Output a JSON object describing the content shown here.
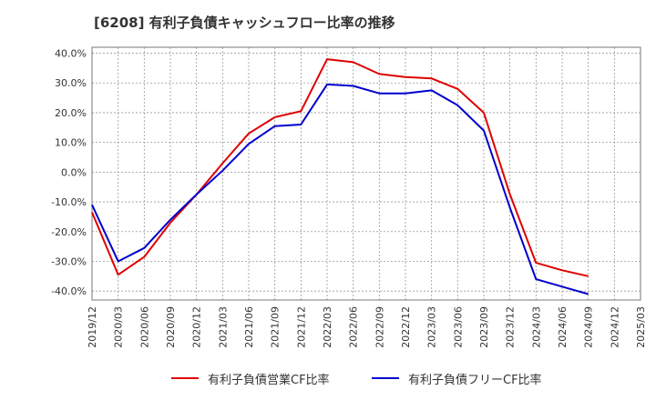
{
  "title": "[6208]  有利子負債キャッシュフロー比率の推移",
  "colors": {
    "series1": "#e00000",
    "series2": "#0000cc",
    "grid": "#999999",
    "axis": "#666666",
    "text": "#333333"
  },
  "chart_data": {
    "type": "line",
    "title": "[6208]  有利子負債キャッシュフロー比率の推移",
    "xlabel": "",
    "ylabel": "",
    "ylim": [
      -43,
      42
    ],
    "yticks": [
      40,
      30,
      20,
      10,
      0,
      -10,
      -20,
      -30,
      -40
    ],
    "ytick_labels": [
      "40.0%",
      "30.0%",
      "20.0%",
      "10.0%",
      "0.0%",
      "-10.0%",
      "-20.0%",
      "-30.0%",
      "-40.0%"
    ],
    "xticks": [
      "2019/12",
      "2020/03",
      "2020/06",
      "2020/09",
      "2020/12",
      "2021/03",
      "2021/06",
      "2021/09",
      "2021/12",
      "2022/03",
      "2022/06",
      "2022/09",
      "2022/12",
      "2023/03",
      "2023/06",
      "2023/09",
      "2023/12",
      "2024/03",
      "2024/06",
      "2024/09",
      "2024/12",
      "2025/03"
    ],
    "grid": true,
    "legend_position": "bottom",
    "series": [
      {
        "name": "有利子負債営業CF比率",
        "color": "#e00000",
        "x": [
          "2019/12",
          "2020/03",
          "2020/06",
          "2020/09",
          "2020/12",
          "2021/03",
          "2021/06",
          "2021/09",
          "2021/12",
          "2022/03",
          "2022/06",
          "2022/09",
          "2022/12",
          "2023/03",
          "2023/06",
          "2023/09",
          "2023/12",
          "2024/03",
          "2024/06",
          "2024/09"
        ],
        "values": [
          -13.5,
          -34.5,
          -28.5,
          -17.0,
          -7.5,
          3.0,
          13.0,
          18.5,
          20.5,
          38.0,
          37.0,
          33.0,
          32.0,
          31.5,
          28.0,
          20.0,
          -7.5,
          -30.5,
          -33.0,
          -35.0
        ]
      },
      {
        "name": "有利子負債フリーCF比率",
        "color": "#0000cc",
        "x": [
          "2019/12",
          "2020/03",
          "2020/06",
          "2020/09",
          "2020/12",
          "2021/03",
          "2021/06",
          "2021/09",
          "2021/12",
          "2022/03",
          "2022/06",
          "2022/09",
          "2022/12",
          "2023/03",
          "2023/06",
          "2023/09",
          "2023/12",
          "2024/03",
          "2024/06",
          "2024/09"
        ],
        "values": [
          -11.0,
          -30.0,
          -25.5,
          -16.0,
          -7.5,
          0.5,
          9.5,
          15.5,
          16.0,
          29.5,
          29.0,
          26.5,
          26.5,
          27.5,
          22.5,
          14.0,
          -12.0,
          -36.0,
          -38.5,
          -41.0
        ]
      }
    ]
  }
}
